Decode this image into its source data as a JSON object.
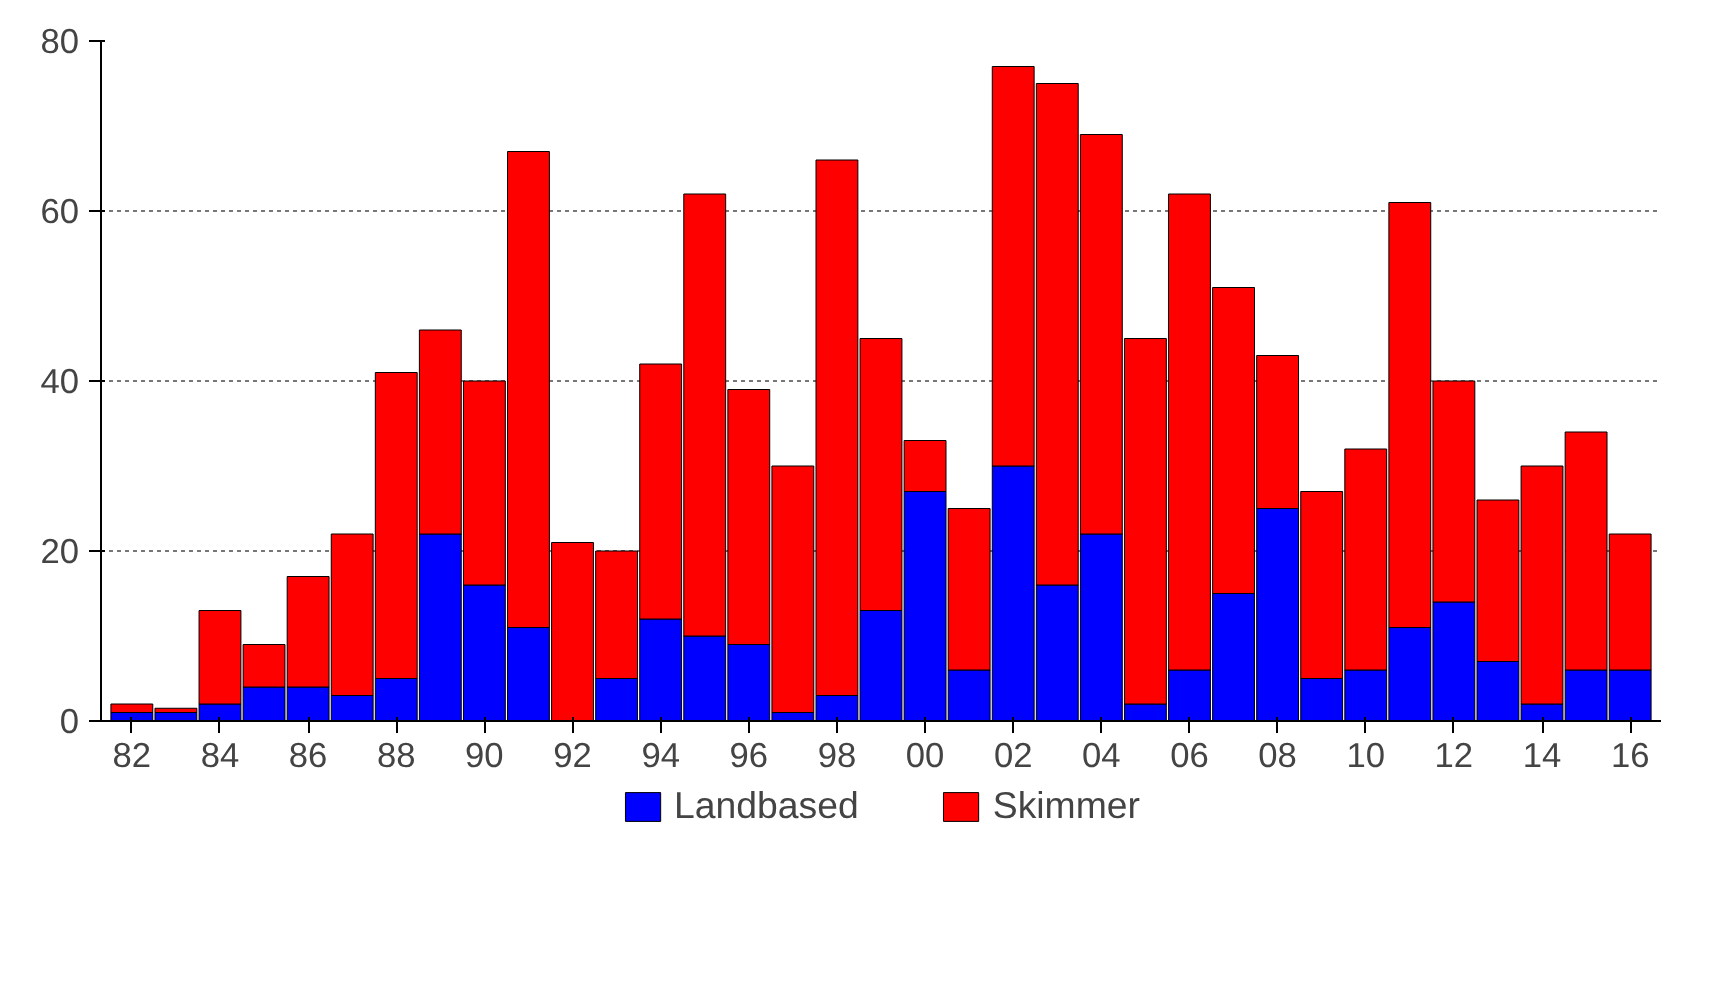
{
  "chart_data": {
    "type": "bar",
    "stacked": true,
    "categories": [
      "82",
      null,
      "84",
      null,
      "86",
      null,
      "88",
      null,
      "90",
      null,
      "92",
      null,
      "94",
      null,
      "96",
      null,
      "98",
      null,
      "00",
      null,
      "02",
      null,
      "04",
      null,
      "06",
      null,
      "08",
      null,
      "10",
      null,
      "12",
      null,
      "14",
      null,
      "16"
    ],
    "series": [
      {
        "name": "Landbased",
        "color": "#0000ff",
        "values": [
          1,
          1,
          2,
          4,
          4,
          3,
          5,
          22,
          16,
          11,
          0,
          5,
          12,
          10,
          9,
          1,
          3,
          13,
          27,
          6,
          30,
          16,
          22,
          2,
          6,
          15,
          25,
          5,
          6,
          11,
          14,
          7,
          2,
          6,
          6
        ]
      },
      {
        "name": "Skimmer",
        "color": "#ff0000",
        "values": [
          1,
          0.5,
          11,
          5,
          13,
          19,
          36,
          24,
          24,
          56,
          21,
          15,
          30,
          52,
          30,
          29,
          63,
          32,
          6,
          19,
          47,
          59,
          47,
          43,
          56,
          36,
          18,
          22,
          26,
          50,
          26,
          19,
          28,
          28,
          16
        ]
      }
    ],
    "ylim": [
      0,
      80
    ],
    "yticks": [
      0,
      20,
      40,
      60,
      80
    ],
    "grid": "y",
    "legend": "bottom"
  }
}
